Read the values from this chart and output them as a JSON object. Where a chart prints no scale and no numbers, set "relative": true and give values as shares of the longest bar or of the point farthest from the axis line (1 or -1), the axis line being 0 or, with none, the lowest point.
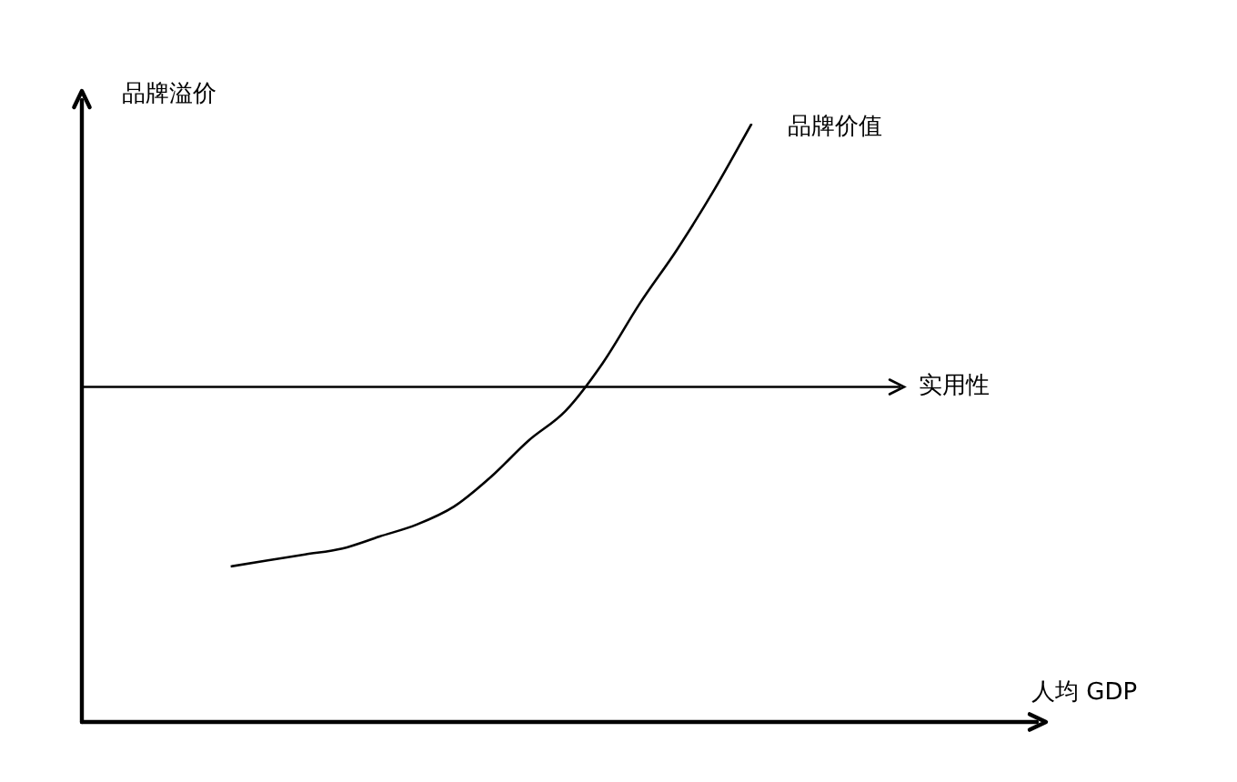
{
  "chart_data": {
    "type": "line",
    "relative": true,
    "ylabel": "品牌溢价",
    "xlabel": "人均 GDP",
    "legend": false,
    "marker": "none",
    "categories": [
      null,
      null,
      null,
      null,
      null,
      null,
      null,
      null,
      null,
      null,
      null,
      null,
      null,
      null,
      null,
      null,
      null,
      null,
      null,
      null,
      null,
      null,
      null
    ],
    "series": [
      {
        "name": "品牌价值",
        "color": "#000000",
        "values": [
          null,
          null,
          null,
          null,
          0.26,
          0.27,
          0.28,
          0.29,
          0.31,
          0.33,
          0.36,
          0.41,
          0.47,
          0.52,
          0.6,
          0.7,
          0.79,
          0.89,
          1,
          null,
          null,
          null,
          null
        ]
      },
      {
        "name": "实用性",
        "color": "#000000",
        "values": [
          0.56,
          0.56,
          0.56,
          0.56,
          0.56,
          0.56,
          0.56,
          0.56,
          0.56,
          0.56,
          0.56,
          0.56,
          0.56,
          0.56,
          0.56,
          0.56,
          0.56,
          0.56,
          0.56,
          0.56,
          0.56,
          0.56,
          0.56
        ]
      }
    ]
  }
}
